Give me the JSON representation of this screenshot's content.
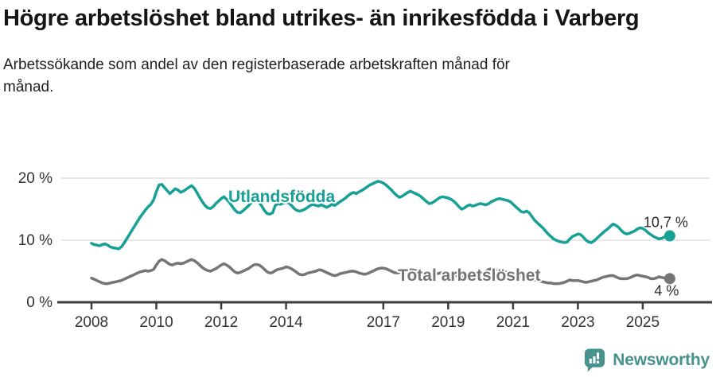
{
  "header": {
    "title": "Högre arbetslöshet bland utrikes- än inrikesfödda i Varberg",
    "subtitle": "Arbetssökande som andel av den registerbaserade arbetskraften månad för månad."
  },
  "footer": {
    "brand": "Newsworthy",
    "logo_icon": "speech-bubble-bar-chart",
    "brand_color": "#48928e"
  },
  "chart_data": {
    "type": "line",
    "title": "Högre arbetslöshet bland utrikes- än inrikesfödda i Varberg",
    "unit": "%",
    "grid": "horizontal-only",
    "legend_position": "inline-labels",
    "start_year": 2008,
    "points_per_year": 12,
    "xlim": [
      2008,
      2026.1
    ],
    "ylim": [
      0,
      21.5
    ],
    "x_ticks": [
      2008,
      2010,
      2012,
      2014,
      2017,
      2019,
      2021,
      2023,
      2025
    ],
    "y_ticks": [
      {
        "value": 0,
        "label": "0 %"
      },
      {
        "value": 10,
        "label": "10 %"
      },
      {
        "value": 20,
        "label": "20 %"
      }
    ],
    "series": [
      {
        "name": "Utlandsfödda",
        "color": "#17a096",
        "end_label": "10,7 %",
        "label_anchor": {
          "year": 2012.22,
          "pct": 16.15,
          "anchor": "start"
        },
        "end_label_offset": {
          "dx": 23,
          "dy": -11,
          "anchor": "end"
        },
        "values": [
          9.5,
          9.3,
          9.2,
          9.1,
          9.3,
          9.4,
          9.2,
          8.9,
          8.8,
          8.7,
          8.6,
          8.9,
          9.5,
          10.2,
          10.9,
          11.6,
          12.3,
          13.0,
          13.7,
          14.3,
          14.9,
          15.4,
          15.8,
          16.5,
          17.8,
          18.9,
          19.0,
          18.5,
          18.0,
          17.5,
          17.9,
          18.3,
          18.1,
          17.7,
          17.9,
          18.2,
          18.5,
          18.8,
          18.4,
          17.7,
          16.9,
          16.2,
          15.6,
          15.2,
          15.1,
          15.4,
          15.9,
          16.3,
          16.7,
          17.0,
          16.6,
          16.1,
          15.5,
          14.9,
          14.5,
          14.4,
          14.7,
          15.1,
          15.5,
          16.0,
          16.3,
          16.4,
          16.1,
          15.5,
          14.8,
          14.3,
          14.2,
          14.4,
          15.6,
          15.9,
          15.8,
          16.0,
          16.1,
          16.0,
          15.6,
          15.1,
          14.8,
          14.7,
          14.8,
          15.0,
          15.3,
          15.6,
          15.8,
          15.6,
          15.5,
          15.7,
          15.5,
          15.3,
          15.5,
          15.8,
          15.6,
          15.9,
          16.2,
          16.5,
          16.8,
          17.2,
          17.5,
          17.7,
          17.5,
          17.8,
          18.0,
          18.3,
          18.6,
          18.9,
          19.1,
          19.3,
          19.5,
          19.4,
          19.2,
          18.9,
          18.5,
          18.1,
          17.6,
          17.2,
          16.9,
          17.1,
          17.4,
          17.7,
          17.9,
          17.7,
          17.5,
          17.3,
          17.0,
          16.6,
          16.2,
          15.9,
          16.0,
          16.3,
          16.6,
          16.9,
          17.0,
          16.9,
          16.8,
          16.6,
          16.3,
          15.9,
          15.4,
          15.0,
          15.2,
          15.5,
          15.7,
          15.5,
          15.6,
          15.8,
          15.9,
          15.8,
          15.7,
          15.9,
          16.2,
          16.4,
          16.6,
          16.7,
          16.6,
          16.5,
          16.4,
          16.2,
          15.8,
          15.4,
          15.0,
          14.6,
          14.5,
          14.7,
          14.4,
          13.8,
          13.2,
          12.8,
          12.4,
          12.0,
          11.5,
          11.0,
          10.6,
          10.2,
          10.0,
          9.8,
          9.7,
          9.6,
          9.7,
          10.2,
          10.6,
          10.8,
          11.0,
          10.9,
          10.5,
          10.0,
          9.7,
          9.6,
          9.9,
          10.3,
          10.7,
          11.1,
          11.5,
          11.8,
          12.2,
          12.6,
          12.4,
          12.1,
          11.6,
          11.2,
          11.0,
          11.1,
          11.3,
          11.5,
          11.8,
          12.0,
          11.9,
          11.6,
          11.2,
          10.9,
          10.6,
          10.4,
          10.2,
          10.3,
          10.5,
          10.6,
          10.7
        ]
      },
      {
        "name": "Total arbetslöshet",
        "color": "#757575",
        "end_label": "4 %",
        "label_anchor": {
          "year": 2017.45,
          "pct": 3.45,
          "anchor": "start"
        },
        "end_label_offset": {
          "dx": -4,
          "dy": 21,
          "anchor": "middle"
        },
        "values": [
          3.9,
          3.7,
          3.5,
          3.3,
          3.1,
          3.0,
          3.0,
          3.1,
          3.2,
          3.3,
          3.4,
          3.5,
          3.7,
          3.9,
          4.1,
          4.3,
          4.5,
          4.7,
          4.9,
          5.0,
          5.1,
          5.0,
          5.1,
          5.3,
          6.0,
          6.6,
          6.9,
          6.7,
          6.4,
          6.1,
          6.0,
          6.2,
          6.3,
          6.2,
          6.3,
          6.5,
          6.7,
          6.9,
          6.7,
          6.4,
          6.0,
          5.6,
          5.3,
          5.1,
          5.0,
          5.2,
          5.4,
          5.7,
          6.0,
          6.2,
          6.0,
          5.7,
          5.3,
          4.9,
          4.7,
          4.8,
          5.0,
          5.2,
          5.4,
          5.7,
          6.0,
          6.1,
          6.0,
          5.7,
          5.3,
          4.9,
          4.7,
          4.8,
          5.1,
          5.3,
          5.4,
          5.5,
          5.7,
          5.6,
          5.4,
          5.1,
          4.8,
          4.5,
          4.4,
          4.5,
          4.7,
          4.8,
          4.9,
          5.0,
          5.2,
          5.2,
          5.0,
          4.8,
          4.6,
          4.4,
          4.3,
          4.4,
          4.6,
          4.7,
          4.8,
          4.9,
          5.0,
          5.0,
          4.9,
          4.7,
          4.6,
          4.5,
          4.6,
          4.8,
          5.0,
          5.2,
          5.4,
          5.5,
          5.5,
          5.4,
          5.2,
          5.0,
          4.8,
          4.7,
          4.8,
          4.9,
          5.0,
          5.1,
          5.2,
          5.2,
          5.1,
          5.0,
          4.8,
          4.6,
          4.4,
          4.3,
          4.4,
          4.5,
          4.6,
          4.7,
          4.8,
          4.8,
          4.8,
          4.7,
          4.5,
          4.3,
          4.2,
          4.1,
          4.2,
          4.3,
          4.4,
          4.4,
          4.5,
          4.6,
          4.7,
          4.8,
          5.0,
          5.3,
          5.4,
          5.3,
          5.2,
          5.1,
          5.0,
          4.9,
          4.8,
          4.7,
          4.6,
          4.5,
          4.4,
          4.2,
          4.1,
          4.0,
          3.9,
          3.7,
          3.6,
          3.5,
          3.4,
          3.3,
          3.2,
          3.1,
          3.1,
          3.0,
          3.0,
          3.0,
          3.1,
          3.2,
          3.4,
          3.6,
          3.5,
          3.5,
          3.5,
          3.4,
          3.3,
          3.2,
          3.3,
          3.4,
          3.5,
          3.6,
          3.8,
          4.0,
          4.1,
          4.2,
          4.3,
          4.3,
          4.1,
          3.9,
          3.8,
          3.8,
          3.8,
          3.9,
          4.1,
          4.3,
          4.4,
          4.3,
          4.2,
          4.1,
          4.0,
          3.8,
          3.8,
          3.9,
          4.1,
          4.0,
          3.9,
          3.8,
          3.8
        ]
      }
    ]
  }
}
